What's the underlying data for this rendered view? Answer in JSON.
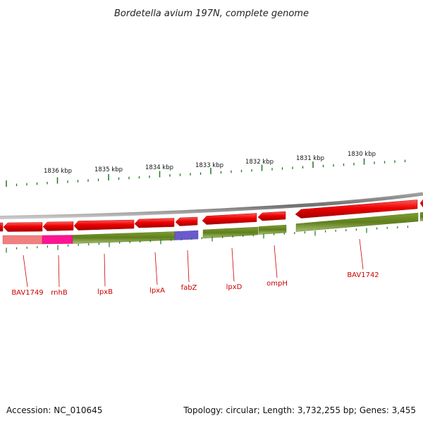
{
  "title": "Bordetella avium 197N, complete genome",
  "footer": {
    "accession": "Accession: NC_010645",
    "info": "Topology: circular; Length: 3,732,255 bp; Genes: 3,455"
  },
  "scale_labels": [
    "1836 kbp",
    "1835 kbp",
    "1834 kbp",
    "1833 kbp",
    "1832 kbp",
    "1831 kbp",
    "1830 kbp"
  ],
  "gene_labels": [
    "BAV1749",
    "rnhB",
    "lpxB",
    "lpxA",
    "fabZ",
    "lpxD",
    "ompH",
    "BAV1742"
  ],
  "colors": {
    "gene_arrow": "#ee0000",
    "cog_green": "#6b8e23",
    "cog_pink": "#f08080",
    "cog_magenta": "#ff1493",
    "cog_blue": "#6a5acd",
    "backbone": "#808080",
    "tick": "#1a7a1a",
    "label": "#cc0000"
  }
}
